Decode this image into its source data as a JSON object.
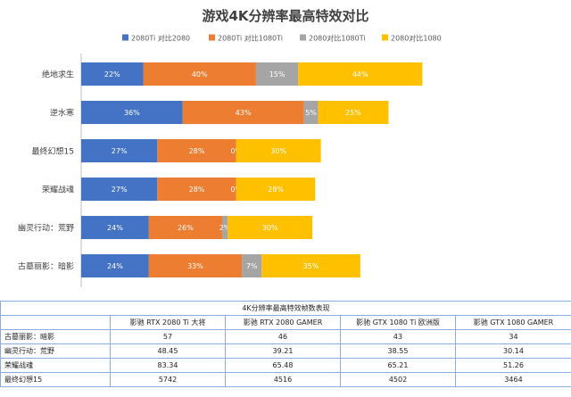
{
  "chart_data": {
    "type": "bar",
    "orientation": "horizontal",
    "stacked": true,
    "title": "游戏4K分辨率最高特效对比",
    "legend_position": "top",
    "grid": false,
    "categories": [
      "绝地求生",
      "逆水寒",
      "最终幻想15",
      "荣耀战魂",
      "幽灵行动：荒野",
      "古墓丽影：暗影"
    ],
    "series": [
      {
        "name": "2080Ti 对比2080",
        "color": "#4472c4",
        "values": [
          22,
          36,
          27,
          27,
          24,
          24
        ],
        "labels": [
          "22%",
          "36%",
          "27%",
          "27%",
          "24%",
          "24%"
        ]
      },
      {
        "name": "2080Ti 对比1080Ti",
        "color": "#ed7d31",
        "values": [
          40,
          43,
          28,
          28,
          26,
          33
        ],
        "labels": [
          "40%",
          "43%",
          "28%",
          "28%",
          "26%",
          "33%"
        ]
      },
      {
        "name": "2080对比1080Ti",
        "color": "#a5a5a5",
        "values": [
          15,
          5,
          0,
          0,
          2,
          7
        ],
        "labels": [
          "15%",
          "5%",
          "0%",
          "0%",
          "2%",
          "7%"
        ]
      },
      {
        "name": "2080对比1080",
        "color": "#ffc000",
        "values": [
          44,
          25,
          30,
          28,
          30,
          35
        ],
        "labels": [
          "44%",
          "25%",
          "30%",
          "28%",
          "30%",
          "35%"
        ]
      }
    ]
  },
  "table": {
    "caption": "4K分辨率最高特效帧数表现",
    "headers": [
      "",
      "影驰 RTX 2080 Ti 大将",
      "影驰 RTX 2080 GAMER",
      "影驰 GTX 1080 Ti 欧洲版",
      "影驰 GTX 1080 GAMER"
    ],
    "rows": [
      {
        "game": "古墓丽影：暗影",
        "values": [
          "57",
          "46",
          "43",
          "34"
        ]
      },
      {
        "game": "幽灵行动：荒野",
        "values": [
          "48.45",
          "39.21",
          "38.55",
          "30.14"
        ]
      },
      {
        "game": "荣耀战魂",
        "values": [
          "83.34",
          "65.48",
          "65.21",
          "51.26"
        ]
      },
      {
        "game": "最终幻想15",
        "values": [
          "5742",
          "4516",
          "4502",
          "3464"
        ]
      }
    ]
  }
}
